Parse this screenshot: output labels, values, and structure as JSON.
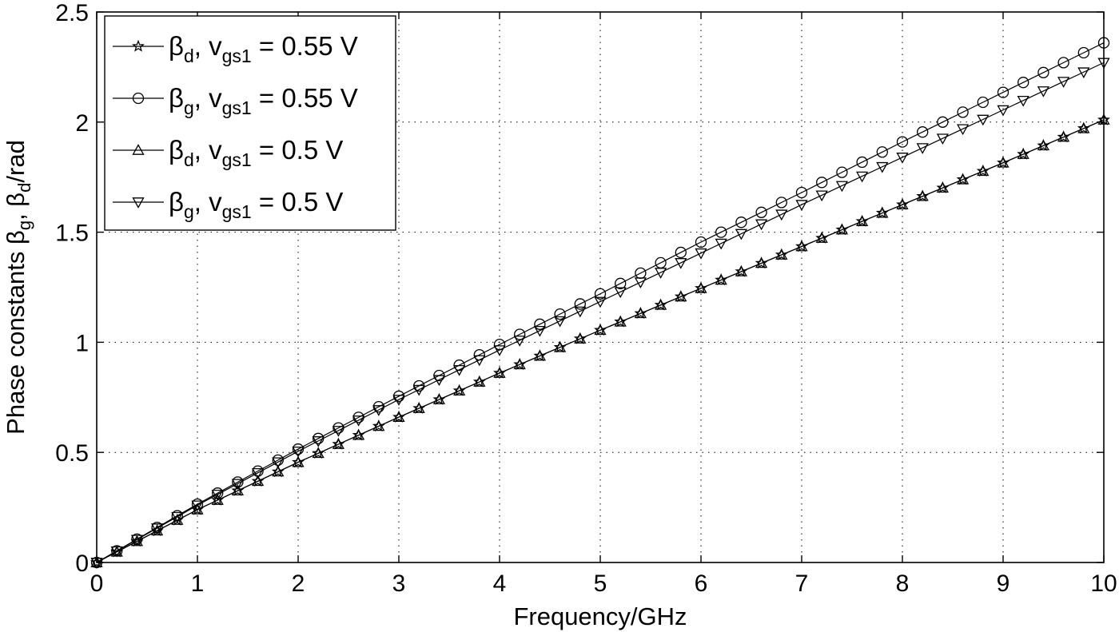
{
  "chart_data": {
    "type": "line",
    "title": "",
    "xlabel": "Frequency/GHz",
    "ylabel": {
      "prefix": "Phase constants β",
      "sub1": "g",
      "mid": ", β",
      "sub2": "d",
      "suffix": "/rad"
    },
    "xlim": [
      0,
      10
    ],
    "ylim": [
      0,
      2.5
    ],
    "xticks": [
      0,
      1,
      2,
      3,
      4,
      5,
      6,
      7,
      8,
      9,
      10
    ],
    "xtick_labels": [
      "0",
      "1",
      "2",
      "3",
      "4",
      "5",
      "6",
      "7",
      "8",
      "9",
      "10"
    ],
    "yticks": [
      0,
      0.5,
      1,
      1.5,
      2,
      2.5
    ],
    "ytick_labels": [
      "0",
      "0.5",
      "1",
      "1.5",
      "2",
      "2.5"
    ],
    "grid": true,
    "legend_position": "top-left",
    "x_step": 0.2,
    "series": [
      {
        "name": "βd, vgs1 = 0.55 V",
        "legend": {
          "beta_sub": "d",
          "v_sub": "gs1",
          "value": " = 0.55 V"
        },
        "marker": "star",
        "anchors_x": [
          0,
          1,
          2,
          3,
          4,
          5,
          6,
          7,
          8,
          9,
          10
        ],
        "anchors_y": [
          0,
          0.24,
          0.455,
          0.66,
          0.86,
          1.055,
          1.245,
          1.435,
          1.625,
          1.815,
          2.01
        ]
      },
      {
        "name": "βg, vgs1 = 0.55 V",
        "legend": {
          "beta_sub": "g",
          "v_sub": "gs1",
          "value": " = 0.55 V"
        },
        "marker": "circle",
        "anchors_x": [
          0,
          1,
          2,
          3,
          4,
          5,
          6,
          7,
          8,
          9,
          10
        ],
        "anchors_y": [
          0,
          0.265,
          0.515,
          0.755,
          0.99,
          1.22,
          1.455,
          1.68,
          1.91,
          2.135,
          2.36
        ]
      },
      {
        "name": "βd, vgs1 = 0.5 V",
        "legend": {
          "beta_sub": "d",
          "v_sub": "gs1",
          "value": " = 0.5 V"
        },
        "marker": "triangle-up",
        "anchors_x": [
          0,
          1,
          2,
          3,
          4,
          5,
          6,
          7,
          8,
          9,
          10
        ],
        "anchors_y": [
          0,
          0.24,
          0.455,
          0.66,
          0.86,
          1.055,
          1.245,
          1.435,
          1.625,
          1.815,
          2.01
        ]
      },
      {
        "name": "βg, vgs1 = 0.5 V",
        "legend": {
          "beta_sub": "g",
          "v_sub": "gs1",
          "value": " = 0.5 V"
        },
        "marker": "triangle-down",
        "anchors_x": [
          0,
          1,
          2,
          3,
          4,
          5,
          6,
          7,
          8,
          9,
          10
        ],
        "anchors_y": [
          0,
          0.26,
          0.505,
          0.74,
          0.965,
          1.185,
          1.405,
          1.625,
          1.84,
          2.055,
          2.27
        ]
      }
    ]
  }
}
